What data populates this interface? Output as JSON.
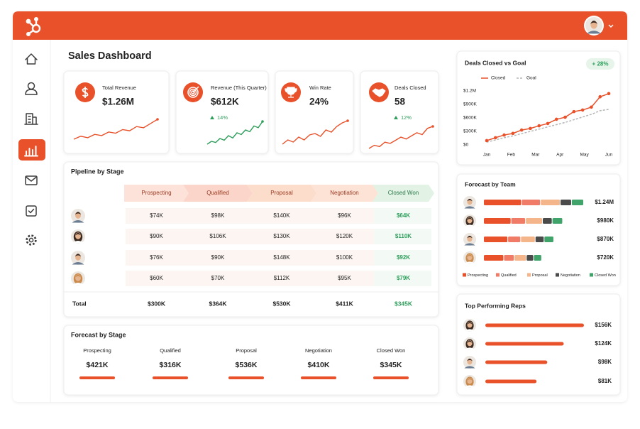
{
  "title": "Sales Dashboard",
  "kpis": [
    {
      "label": "Total Revenue",
      "value": "$1.26M",
      "color": "#e8512a",
      "spark": [
        2,
        3,
        2.5,
        3.6,
        3.2,
        4.4,
        4,
        5.2,
        4.8,
        6.2,
        5.8,
        7.2,
        8.6
      ]
    },
    {
      "label": "Revenue (This Quarter)",
      "value": "$612K",
      "change": "14%",
      "color": "#2e9e5b",
      "spark": [
        1,
        2,
        1.6,
        3,
        2.4,
        4,
        3.2,
        5,
        4.4,
        6,
        5.4,
        7.4,
        6.8,
        9
      ]
    },
    {
      "label": "Win Rate",
      "value": "24%",
      "color": "#e8512a",
      "spark": [
        2,
        3.2,
        2.6,
        4,
        3.2,
        4.6,
        5,
        4.2,
        6,
        5.4,
        7,
        8,
        8.6
      ]
    },
    {
      "label": "Deals Closed",
      "value": "58",
      "change": "12%",
      "color": "#e8512a",
      "spark": [
        1,
        2,
        1.6,
        3,
        2.6,
        3.6,
        4.6,
        4,
        5,
        6,
        5.4,
        7.4,
        8
      ]
    }
  ],
  "pipeline": {
    "title": "Pipeline by Stage",
    "columns": [
      "Prospecting",
      "Qualified",
      "Proposal",
      "Negotiation",
      "Closed Won"
    ],
    "rows": [
      [
        "$74K",
        "$98K",
        "$140K",
        "$96K",
        "$64K"
      ],
      [
        "$90K",
        "$106K",
        "$130K",
        "$120K",
        "$110K"
      ],
      [
        "$76K",
        "$90K",
        "$148K",
        "$100K",
        "$92K"
      ],
      [
        "$60K",
        "$70K",
        "$112K",
        "$95K",
        "$79K"
      ]
    ],
    "total": {
      "label": "Total",
      "values": [
        "$300K",
        "$364K",
        "$530K",
        "$411K",
        "$345K"
      ]
    }
  },
  "forecast_stage": {
    "title": "Forecast by Stage",
    "items": [
      {
        "label": "Prospecting",
        "value": "$421K"
      },
      {
        "label": "Qualified",
        "value": "$316K"
      },
      {
        "label": "Proposal",
        "value": "$536K"
      },
      {
        "label": "Negotiation",
        "value": "$410K"
      },
      {
        "label": "Closed Won",
        "value": "$345K"
      }
    ]
  },
  "chart_data": [
    {
      "type": "line",
      "title": "Deals Closed vs Goal",
      "badge": "+ 28%",
      "x": [
        0,
        1,
        2,
        3,
        4,
        5,
        6,
        7,
        8,
        9,
        10,
        11,
        12,
        13,
        14
      ],
      "xlim": [
        0,
        14
      ],
      "xticks": [
        {
          "value": 0,
          "label": "Jan"
        },
        {
          "value": 2.8,
          "label": "Feb"
        },
        {
          "value": 5.6,
          "label": "Mar"
        },
        {
          "value": 8.4,
          "label": "Apr"
        },
        {
          "value": 11.2,
          "label": "May"
        },
        {
          "value": 14,
          "label": "Jun"
        }
      ],
      "ylim": [
        0,
        1200000
      ],
      "yticks": [
        {
          "value": 0,
          "label": "$0"
        },
        {
          "value": 300000,
          "label": "$300K"
        },
        {
          "value": 600000,
          "label": "$600K"
        },
        {
          "value": 900000,
          "label": "$900K"
        },
        {
          "value": 1200000,
          "label": "$1.2M"
        }
      ],
      "grid": false,
      "series": [
        {
          "name": "Closed",
          "color": "#e8512a",
          "values": [
            95000,
            160000,
            220000,
            255000,
            330000,
            365000,
            425000,
            475000,
            570000,
            615000,
            740000,
            775000,
            840000,
            1070000,
            1140000
          ]
        },
        {
          "name": "Goal",
          "color": "#b5b5b5",
          "dashed": true,
          "values": [
            60000,
            110000,
            160000,
            200000,
            250000,
            300000,
            350000,
            400000,
            450000,
            500000,
            560000,
            620000,
            680000,
            760000,
            790000
          ]
        }
      ]
    },
    {
      "type": "stacked_bar",
      "title": "Forecast by Team",
      "categories": [
        null,
        null,
        null,
        null
      ],
      "series": [
        {
          "name": "Prospecting",
          "color": "#e8512a",
          "values": [
            470000,
            340000,
            300000,
            250000
          ]
        },
        {
          "name": "Qualified",
          "color": "#f07c68",
          "values": [
            235000,
            180000,
            160000,
            130000
          ]
        },
        {
          "name": "Proposal",
          "color": "#f5b58a",
          "values": [
            245000,
            210000,
            180000,
            150000
          ]
        },
        {
          "name": "Negotiation",
          "color": "#4a4a4a",
          "values": [
            140000,
            120000,
            110000,
            90000
          ]
        },
        {
          "name": "Closed Won",
          "color": "#3fa36a",
          "values": [
            150000,
            130000,
            120000,
            100000
          ]
        }
      ],
      "totals": [
        1240000,
        980000,
        870000,
        720000
      ],
      "totals_labels": [
        "$1.24M",
        "$980K",
        "$870K",
        "$720K"
      ]
    },
    {
      "type": "bar",
      "orientation": "horizontal",
      "title": "Top Performing Reps",
      "categories": [
        null,
        null,
        null,
        null
      ],
      "values": [
        156000,
        124000,
        98000,
        81000
      ],
      "value_labels": [
        "$156K",
        "$124K",
        "$98K",
        "$81K"
      ],
      "color": "#e8512a"
    }
  ]
}
